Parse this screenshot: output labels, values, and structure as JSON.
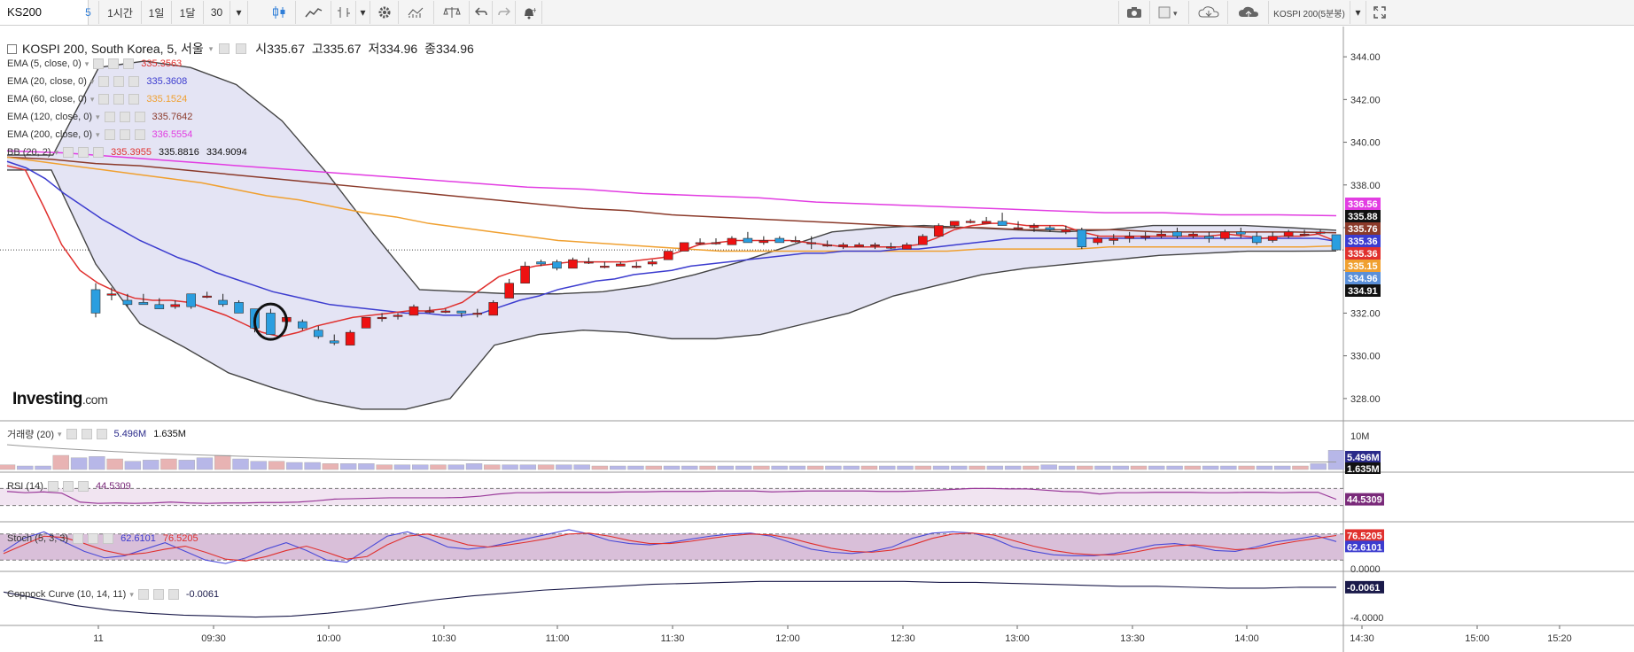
{
  "toolbar": {
    "symbol": "KS200",
    "intervals": [
      "5",
      "1시간",
      "1일",
      "1달",
      "30"
    ],
    "active_interval": "5",
    "symbol_compare": "KOSPI 200(5분봉)",
    "icons": [
      "candlestick-icon",
      "line-chart-icon",
      "bar-chart-icon",
      "gear-icon",
      "indicators-icon",
      "balance-icon",
      "undo-icon",
      "redo-icon",
      "alert-icon",
      "camera-icon",
      "color-box-icon",
      "cloud-download-icon",
      "cloud-upload-icon",
      "fullscreen-icon"
    ]
  },
  "header": {
    "title": "KOSPI 200, South Korea, 5, 서울",
    "open_label": "시335.67",
    "high_label": "고335.67",
    "low_label": "저334.96",
    "close_label": "종334.96"
  },
  "legend": [
    {
      "name": "EMA (5, close, 0)",
      "value": "335.3563",
      "color": "#e0302e"
    },
    {
      "name": "EMA (20, close, 0)",
      "value": "335.3608",
      "color": "#3c3ccf"
    },
    {
      "name": "EMA (60, close, 0)",
      "value": "335.1524",
      "color": "#f0a030"
    },
    {
      "name": "EMA (120, close, 0)",
      "value": "335.7642",
      "color": "#8b3a2a"
    },
    {
      "name": "EMA (200, close, 0)",
      "value": "336.5554",
      "color": "#e23de2"
    },
    {
      "name": "BB (20, 2)",
      "value": "335.3955",
      "value2": "335.8816",
      "value3": "334.9094",
      "color": "#e0302e"
    }
  ],
  "panes": {
    "volume": {
      "name": "거래량 (20)",
      "value": "5.496M",
      "value2": "1.635M"
    },
    "rsi": {
      "name": "RSI (14)",
      "value": "44.5309"
    },
    "stoch": {
      "name": "Stoch (5, 3, 3)",
      "value": "62.6101",
      "value2": "76.5205"
    },
    "coppock": {
      "name": "Coppock Curve (10, 14, 11)",
      "value": "-0.0061"
    }
  },
  "price_axis": {
    "ticks": [
      "344.00",
      "342.00",
      "340.00",
      "338.00",
      "336.00",
      "334.00",
      "332.00",
      "330.00",
      "328.00"
    ],
    "tags": [
      {
        "label": "336.56",
        "color": "#e23de2"
      },
      {
        "label": "335.88",
        "color": "#111111"
      },
      {
        "label": "335.76",
        "color": "#8b3a2a"
      },
      {
        "label": "335.36",
        "color": "#3c3ccf"
      },
      {
        "label": "335.36",
        "color": "#e0302e"
      },
      {
        "label": "335.15",
        "color": "#f0a030"
      },
      {
        "label": "334.96",
        "color": "#5a8fd8"
      },
      {
        "label": "334.91",
        "color": "#111111"
      }
    ]
  },
  "sub_axes": {
    "volume": {
      "ticks": [
        "10M"
      ],
      "tags": [
        {
          "label": "5.496M",
          "color": "#2a2a8a"
        },
        {
          "label": "1.635M",
          "color": "#111111"
        }
      ]
    },
    "rsi": {
      "tags": [
        {
          "label": "44.5309",
          "color": "#7a2a7a"
        }
      ]
    },
    "stoch": {
      "ticks": [
        "0.0000"
      ],
      "tags": [
        {
          "label": "76.5205",
          "color": "#e0302e"
        },
        {
          "label": "62.6101",
          "color": "#3c3ccf"
        }
      ]
    },
    "coppock": {
      "ticks": [
        "-4.0000"
      ],
      "tags": [
        {
          "label": "-0.0061",
          "color": "#1a1a4a"
        }
      ]
    }
  },
  "time_axis": [
    "11",
    "09:30",
    "10:00",
    "10:30",
    "11:00",
    "11:30",
    "12:00",
    "12:30",
    "13:00",
    "13:30",
    "14:00",
    "14:30",
    "15:00",
    "15:20"
  ],
  "logo": {
    "brand": "Investing",
    "suffix": ".com"
  },
  "chart_data": {
    "type": "candlestick",
    "title": "KOSPI 200, South Korea, 5, 서울",
    "ylim": [
      327,
      345
    ],
    "last_close": 334.96,
    "candles": [
      [
        333.1,
        333.4,
        332.0,
        331.8
      ],
      [
        332.9,
        333.2,
        332.9,
        332.6
      ],
      [
        332.6,
        332.9,
        332.4,
        332.3
      ],
      [
        332.5,
        332.9,
        332.4,
        332.6
      ],
      [
        332.4,
        332.7,
        332.2,
        332.2
      ],
      [
        332.3,
        332.6,
        332.4,
        332.2
      ],
      [
        332.9,
        332.9,
        332.3,
        332.2
      ],
      [
        332.8,
        333.0,
        332.8,
        332.7
      ],
      [
        332.6,
        332.9,
        332.4,
        332.3
      ],
      [
        332.5,
        332.6,
        332.0,
        332.0
      ],
      [
        332.2,
        332.2,
        331.3,
        331.1
      ],
      [
        332.0,
        332.2,
        331.0,
        331.0
      ],
      [
        331.6,
        331.7,
        331.8,
        331.6
      ],
      [
        331.6,
        331.7,
        331.3,
        331.2
      ],
      [
        331.2,
        331.4,
        330.9,
        330.8
      ],
      [
        330.7,
        331.0,
        330.6,
        330.5
      ],
      [
        330.5,
        331.2,
        331.1,
        330.5
      ],
      [
        331.3,
        331.8,
        331.8,
        331.3
      ],
      [
        331.8,
        332.0,
        331.8,
        331.6
      ],
      [
        331.9,
        332.0,
        331.9,
        331.7
      ],
      [
        331.9,
        332.4,
        332.3,
        331.9
      ],
      [
        332.1,
        332.3,
        332.1,
        332.0
      ],
      [
        332.1,
        332.2,
        332.1,
        332.0
      ],
      [
        332.1,
        332.1,
        332.0,
        331.8
      ],
      [
        332.0,
        332.2,
        332.0,
        331.8
      ],
      [
        331.9,
        332.6,
        332.5,
        331.9
      ],
      [
        332.7,
        333.6,
        333.4,
        332.7
      ],
      [
        333.4,
        334.4,
        334.2,
        333.4
      ],
      [
        334.4,
        334.5,
        334.3,
        334.2
      ],
      [
        334.4,
        334.5,
        334.1,
        334.0
      ],
      [
        334.1,
        334.6,
        334.5,
        334.1
      ],
      [
        334.4,
        334.6,
        334.4,
        334.3
      ],
      [
        334.2,
        334.4,
        334.2,
        334.1
      ],
      [
        334.2,
        334.4,
        334.3,
        334.2
      ],
      [
        334.2,
        334.4,
        334.2,
        334.1
      ],
      [
        334.3,
        334.5,
        334.4,
        334.2
      ],
      [
        334.5,
        334.9,
        334.9,
        334.5
      ],
      [
        334.9,
        335.3,
        335.3,
        334.9
      ],
      [
        335.3,
        335.5,
        335.3,
        335.2
      ],
      [
        335.3,
        335.5,
        335.3,
        335.2
      ],
      [
        335.2,
        335.6,
        335.5,
        335.2
      ],
      [
        335.5,
        335.8,
        335.3,
        335.3
      ],
      [
        335.3,
        335.6,
        335.4,
        335.2
      ],
      [
        335.5,
        335.6,
        335.3,
        335.3
      ],
      [
        335.4,
        335.6,
        335.4,
        335.3
      ],
      [
        335.3,
        335.6,
        335.3,
        335.0
      ],
      [
        335.2,
        335.4,
        335.2,
        335.1
      ],
      [
        335.1,
        335.3,
        335.2,
        335.0
      ],
      [
        335.1,
        335.3,
        335.2,
        335.1
      ],
      [
        335.2,
        335.3,
        335.2,
        335.0
      ],
      [
        335.1,
        335.3,
        335.1,
        335.0
      ],
      [
        335.0,
        335.3,
        335.2,
        335.0
      ],
      [
        335.2,
        335.7,
        335.6,
        335.2
      ],
      [
        335.6,
        336.2,
        336.1,
        335.6
      ],
      [
        336.1,
        336.3,
        336.3,
        336.0
      ],
      [
        336.3,
        336.4,
        336.3,
        336.2
      ],
      [
        336.2,
        336.5,
        336.3,
        336.2
      ],
      [
        336.3,
        336.7,
        336.1,
        336.1
      ],
      [
        336.0,
        336.3,
        336.0,
        335.9
      ],
      [
        336.0,
        336.2,
        336.1,
        335.8
      ],
      [
        336.0,
        336.1,
        335.9,
        335.8
      ],
      [
        335.8,
        336.1,
        335.9,
        335.7
      ],
      [
        335.9,
        336.0,
        335.1,
        335.0
      ],
      [
        335.3,
        335.6,
        335.5,
        335.2
      ],
      [
        335.4,
        335.7,
        335.5,
        335.2
      ],
      [
        335.5,
        335.8,
        335.6,
        335.3
      ],
      [
        335.6,
        335.8,
        335.6,
        335.4
      ],
      [
        335.6,
        335.9,
        335.7,
        335.5
      ],
      [
        335.8,
        336.0,
        335.6,
        335.5
      ],
      [
        335.6,
        335.8,
        335.7,
        335.5
      ],
      [
        335.6,
        335.8,
        335.5,
        335.3
      ],
      [
        335.5,
        335.9,
        335.8,
        335.4
      ],
      [
        335.8,
        336.0,
        335.7,
        335.5
      ],
      [
        335.6,
        335.8,
        335.3,
        335.2
      ],
      [
        335.4,
        335.8,
        335.6,
        335.3
      ],
      [
        335.6,
        335.9,
        335.8,
        335.5
      ],
      [
        335.7,
        335.9,
        335.7,
        335.6
      ],
      [
        335.8,
        335.9,
        335.8,
        335.7
      ],
      [
        335.67,
        335.67,
        334.96,
        334.96
      ]
    ],
    "ema5": [
      338.9,
      338.7,
      337.0,
      335.2,
      334.0,
      333.4,
      333.0,
      332.7,
      332.6,
      332.6,
      332.5,
      332.2,
      331.9,
      331.5,
      331.1,
      330.9,
      331.1,
      331.4,
      331.6,
      331.8,
      331.9,
      332.0,
      332.1,
      332.1,
      332.2,
      332.5,
      333.1,
      333.7,
      334.0,
      334.2,
      334.3,
      334.4,
      334.4,
      334.4,
      334.4,
      334.5,
      334.6,
      334.9,
      335.2,
      335.3,
      335.4,
      335.4,
      335.4,
      335.4,
      335.3,
      335.2,
      335.1,
      335.1,
      335.1,
      335.1,
      335.2,
      335.5,
      335.9,
      336.1,
      336.2,
      336.2,
      336.1,
      336.1,
      336.1,
      335.8,
      335.6,
      335.6,
      335.6,
      335.6,
      335.6,
      335.6,
      335.6,
      335.7,
      335.6,
      335.5,
      335.6,
      335.6,
      335.7,
      335.36
    ],
    "ema20": [
      339.1,
      338.8,
      338.3,
      337.6,
      337.0,
      336.4,
      335.9,
      335.4,
      335.0,
      334.6,
      334.3,
      333.9,
      333.6,
      333.3,
      333.0,
      332.8,
      332.6,
      332.4,
      332.3,
      332.2,
      332.1,
      332.0,
      332.0,
      331.9,
      331.9,
      332.0,
      332.3,
      332.6,
      332.8,
      333.1,
      333.3,
      333.5,
      333.6,
      333.8,
      333.9,
      334.0,
      334.2,
      334.3,
      334.4,
      334.5,
      334.6,
      334.7,
      334.8,
      334.8,
      334.9,
      334.9,
      334.9,
      335.0,
      335.0,
      335.1,
      335.2,
      335.3,
      335.4,
      335.5,
      335.5,
      335.5,
      335.5,
      335.5,
      335.5,
      335.5,
      335.5,
      335.5,
      335.5,
      335.5,
      335.5,
      335.5,
      335.5,
      335.5,
      335.5,
      335.5,
      335.36
    ],
    "ema60": [
      339.3,
      339.1,
      338.9,
      338.7,
      338.5,
      338.3,
      338.1,
      337.8,
      337.5,
      337.3,
      337.0,
      336.7,
      336.5,
      336.2,
      336.0,
      335.8,
      335.6,
      335.4,
      335.3,
      335.2,
      335.1,
      335.0,
      334.9,
      334.9,
      334.9,
      334.9,
      334.9,
      334.9,
      334.9,
      334.9,
      335.0,
      335.0,
      335.0,
      335.0,
      335.1,
      335.1,
      335.1,
      335.1,
      335.1,
      335.1,
      335.1,
      335.15
    ],
    "ema120": [
      339.3,
      339.2,
      339.0,
      338.9,
      338.7,
      338.5,
      338.3,
      338.1,
      337.9,
      337.7,
      337.5,
      337.3,
      337.1,
      336.9,
      336.8,
      336.6,
      336.5,
      336.4,
      336.3,
      336.2,
      336.1,
      336.0,
      336.0,
      335.9,
      335.9,
      335.9,
      335.8,
      335.8,
      335.8,
      335.8,
      335.76
    ],
    "ema200": [
      339.6,
      339.5,
      339.3,
      339.1,
      338.9,
      338.7,
      338.5,
      338.3,
      338.1,
      337.9,
      337.8,
      337.6,
      337.5,
      337.4,
      337.2,
      337.1,
      337.0,
      336.9,
      336.8,
      336.7,
      336.7,
      336.6,
      336.6,
      336.56
    ],
    "bb_upper": [
      339.4,
      339.4,
      343.5,
      343.8,
      343.5,
      342.7,
      341.0,
      338.5,
      335.7,
      333.1,
      333.0,
      332.9,
      332.9,
      333.0,
      333.3,
      333.8,
      334.4,
      335.1,
      335.8,
      336.0,
      336.1,
      336.0,
      335.9,
      335.8,
      335.9,
      336.1,
      336.1,
      336.1,
      336.0,
      335.88
    ],
    "bb_lower": [
      338.7,
      338.7,
      334.3,
      331.5,
      330.4,
      329.2,
      328.5,
      327.9,
      327.5,
      327.5,
      328.0,
      330.5,
      331.0,
      331.2,
      331.1,
      330.8,
      330.8,
      331.0,
      331.5,
      332.0,
      332.8,
      333.3,
      333.8,
      334.1,
      334.3,
      334.5,
      334.7,
      334.8,
      334.9,
      334.9,
      334.91
    ],
    "volume": [
      0.4,
      0.3,
      0.3,
      1.2,
      1.0,
      1.1,
      0.9,
      0.7,
      0.8,
      0.9,
      0.8,
      1.0,
      1.2,
      0.9,
      0.7,
      0.7,
      0.6,
      0.6,
      0.5,
      0.5,
      0.5,
      0.4,
      0.4,
      0.4,
      0.4,
      0.4,
      0.5,
      0.4,
      0.4,
      0.4,
      0.4,
      0.4,
      0.4,
      0.3,
      0.3,
      0.3,
      0.3,
      0.3,
      0.3,
      0.3,
      0.3,
      0.3,
      0.3,
      0.3,
      0.3,
      0.3,
      0.3,
      0.3,
      0.3,
      0.3,
      0.3,
      0.3,
      0.3,
      0.3,
      0.3,
      0.3,
      0.3,
      0.3,
      0.4,
      0.3,
      0.3,
      0.3,
      0.3,
      0.3,
      0.3,
      0.3,
      0.3,
      0.3,
      0.3,
      0.3,
      0.3,
      0.3,
      0.3,
      0.5,
      1.635
    ],
    "rsi": [
      63,
      60,
      62,
      59,
      38,
      35,
      36,
      35,
      36,
      38,
      36,
      35,
      36,
      36,
      37,
      37,
      38,
      41,
      45,
      46,
      47,
      48,
      48,
      48,
      48,
      49,
      52,
      57,
      60,
      60,
      61,
      61,
      61,
      61,
      62,
      62,
      63,
      63,
      63,
      64,
      64,
      64,
      62,
      63,
      64,
      64,
      64,
      64,
      63,
      63,
      64,
      66,
      68,
      70,
      70,
      69,
      69,
      66,
      63,
      62,
      57,
      60,
      60,
      61,
      61,
      61,
      60,
      60,
      61,
      61,
      60,
      61,
      61,
      44.53
    ],
    "stoch_k": [
      40,
      70,
      85,
      62,
      40,
      25,
      30,
      45,
      60,
      40,
      20,
      12,
      25,
      45,
      60,
      42,
      20,
      15,
      45,
      75,
      85,
      70,
      50,
      45,
      50,
      60,
      70,
      80,
      90,
      80,
      65,
      58,
      55,
      60,
      68,
      75,
      80,
      82,
      75,
      60,
      45,
      38,
      35,
      40,
      50,
      70,
      82,
      85,
      82,
      70,
      50,
      40,
      32,
      30,
      30,
      35,
      45,
      55,
      58,
      52,
      42,
      40,
      50,
      62,
      68,
      76,
      62.61
    ],
    "stoch_d": [
      35,
      55,
      75,
      72,
      58,
      42,
      32,
      36,
      45,
      52,
      38,
      22,
      18,
      28,
      42,
      52,
      38,
      22,
      28,
      55,
      75,
      80,
      68,
      55,
      50,
      55,
      62,
      70,
      80,
      82,
      75,
      65,
      58,
      58,
      63,
      70,
      76,
      80,
      78,
      70,
      58,
      47,
      40,
      38,
      43,
      55,
      70,
      80,
      82,
      78,
      65,
      52,
      42,
      35,
      32,
      32,
      38,
      47,
      53,
      55,
      50,
      44,
      46,
      55,
      63,
      70,
      76.52
    ],
    "coppock": [
      -0.5,
      -1.2,
      -1.9,
      -2.4,
      -2.7,
      -2.9,
      -3.0,
      -3.1,
      -3.0,
      -2.7,
      -2.3,
      -1.8,
      -1.3,
      -0.9,
      -0.6,
      -0.3,
      -0.1,
      0.1,
      0.3,
      0.4,
      0.5,
      0.6,
      0.6,
      0.6,
      0.6,
      0.6,
      0.5,
      0.5,
      0.4,
      0.3,
      0.2,
      0.1,
      0.1,
      0.0,
      -0.1,
      -0.1,
      0.0,
      -0.0061
    ]
  }
}
